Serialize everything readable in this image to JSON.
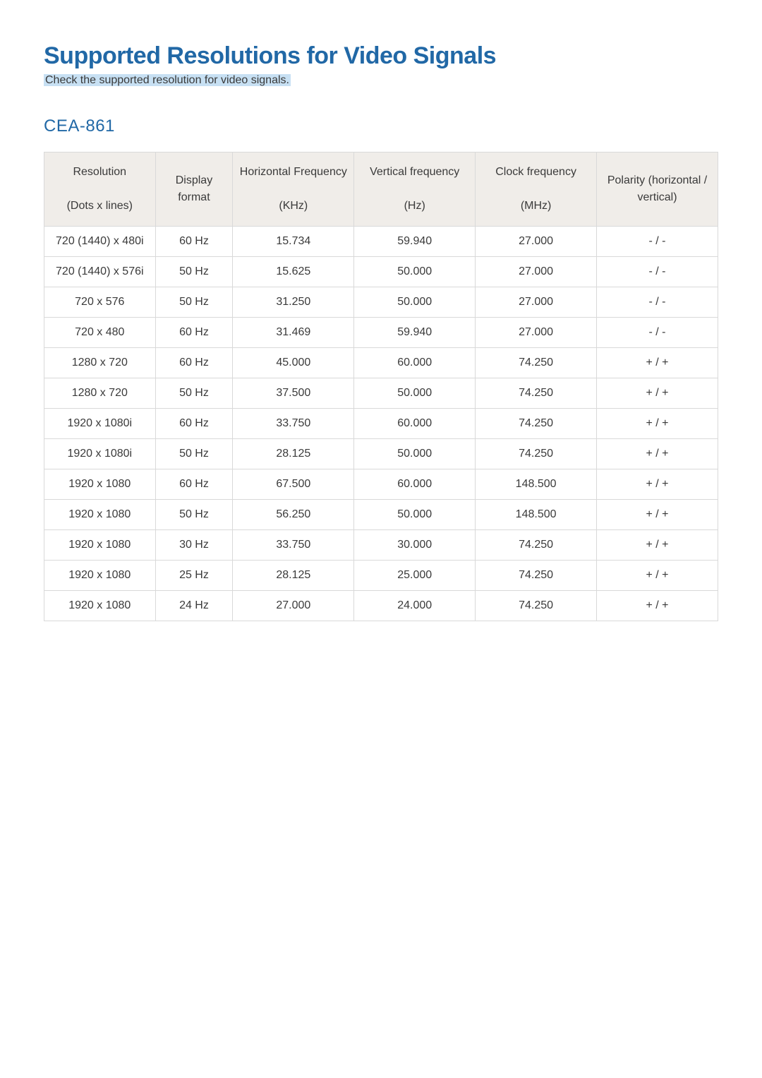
{
  "page": {
    "title": "Supported Resolutions for Video Signals",
    "subtitle": "Check the supported resolution for video signals.",
    "section": "CEA-861"
  },
  "table": {
    "header_bg": "#f0ede9",
    "border_color": "#d9d9d9",
    "text_color": "#3a3a3a",
    "heading_color": "#2168a6",
    "highlight_bg": "#c7e0f3",
    "columns": [
      {
        "l1": "Resolution",
        "l2": "(Dots x lines)"
      },
      {
        "l1": "Display",
        "l2": "format"
      },
      {
        "l1": "Horizontal Frequency",
        "l2": "(KHz)"
      },
      {
        "l1": "Vertical frequency",
        "l2": "(Hz)"
      },
      {
        "l1": "Clock frequency",
        "l2": "(MHz)"
      },
      {
        "l1": "Polarity (horizontal /",
        "l2": "vertical)"
      }
    ],
    "rows": [
      [
        "720 (1440) x 480i",
        "60 Hz",
        "15.734",
        "59.940",
        "27.000",
        "- / -"
      ],
      [
        "720 (1440) x 576i",
        "50 Hz",
        "15.625",
        "50.000",
        "27.000",
        "- / -"
      ],
      [
        "720 x 576",
        "50 Hz",
        "31.250",
        "50.000",
        "27.000",
        "- / -"
      ],
      [
        "720 x 480",
        "60 Hz",
        "31.469",
        "59.940",
        "27.000",
        "- / -"
      ],
      [
        "1280 x 720",
        "60 Hz",
        "45.000",
        "60.000",
        "74.250",
        "+ / +"
      ],
      [
        "1280 x 720",
        "50 Hz",
        "37.500",
        "50.000",
        "74.250",
        "+ / +"
      ],
      [
        "1920 x 1080i",
        "60 Hz",
        "33.750",
        "60.000",
        "74.250",
        "+ / +"
      ],
      [
        "1920 x 1080i",
        "50 Hz",
        "28.125",
        "50.000",
        "74.250",
        "+ / +"
      ],
      [
        "1920 x 1080",
        "60 Hz",
        "67.500",
        "60.000",
        "148.500",
        "+ / +"
      ],
      [
        "1920 x 1080",
        "50 Hz",
        "56.250",
        "50.000",
        "148.500",
        "+ / +"
      ],
      [
        "1920 x 1080",
        "30 Hz",
        "33.750",
        "30.000",
        "74.250",
        "+ / +"
      ],
      [
        "1920 x 1080",
        "25 Hz",
        "28.125",
        "25.000",
        "74.250",
        "+ / +"
      ],
      [
        "1920 x 1080",
        "24 Hz",
        "27.000",
        "24.000",
        "74.250",
        "+ / +"
      ]
    ]
  }
}
